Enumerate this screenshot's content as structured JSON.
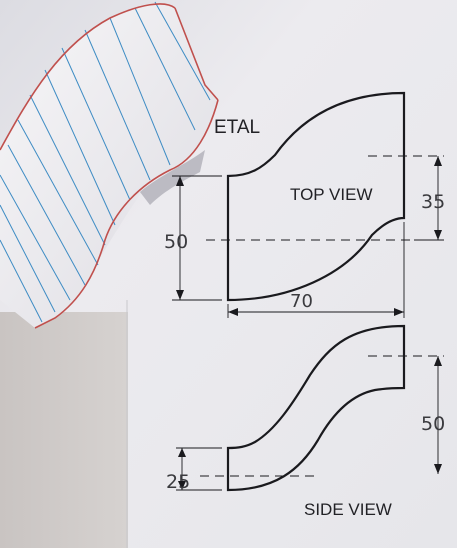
{
  "header": {
    "partial_title": "ETAL"
  },
  "views": {
    "top": {
      "label": "TOP VIEW",
      "dim_height": "50",
      "dim_width": "70",
      "dim_offset": "35"
    },
    "side": {
      "label": "SIDE VIEW",
      "dim_height": "50",
      "dim_offset": "25"
    }
  },
  "colors": {
    "paper": "#ecebef",
    "ink": "#1a1a1e",
    "model_edge": "#c0504d",
    "model_grid": "#3e8cc4",
    "model_face": "#f3f2f4",
    "model_shadow": "#bdbcc4"
  }
}
